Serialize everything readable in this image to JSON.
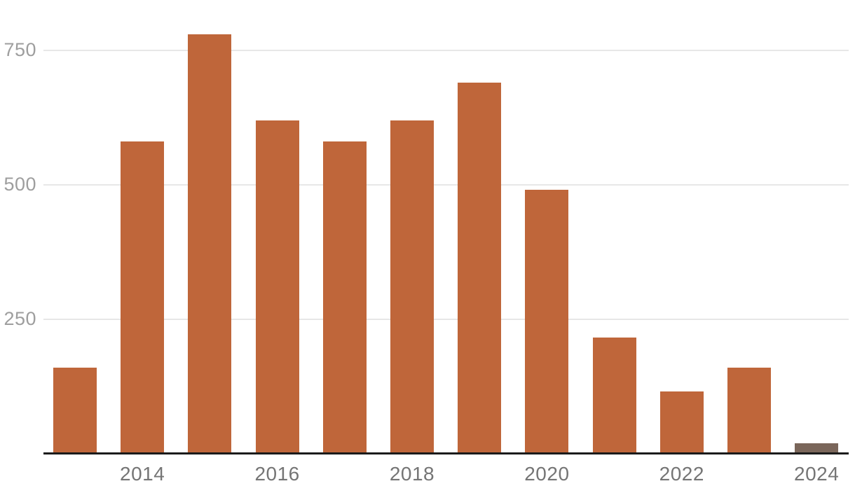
{
  "chart_data": {
    "type": "bar",
    "title": "",
    "xlabel": "",
    "ylabel": "",
    "categories": [
      "2013",
      "2014",
      "2015",
      "2016",
      "2017",
      "2018",
      "2019",
      "2020",
      "2021",
      "2022",
      "2023",
      "2024"
    ],
    "values": [
      160,
      580,
      780,
      620,
      580,
      620,
      690,
      490,
      215,
      115,
      160,
      18
    ],
    "bar_colors": [
      "#bf663a",
      "#bf663a",
      "#bf663a",
      "#bf663a",
      "#bf663a",
      "#bf663a",
      "#bf663a",
      "#bf663a",
      "#bf663a",
      "#bf663a",
      "#bf663a",
      "#7a665a"
    ],
    "ylim": [
      0,
      845
    ],
    "yticks": [
      250,
      500,
      750
    ],
    "x_tick_labels": [
      "2014",
      "2016",
      "2018",
      "2020",
      "2022",
      "2024"
    ],
    "grid": true,
    "legend": "none",
    "colors": {
      "bar_default": "#bf663a",
      "bar_final": "#7a665a",
      "gridline": "#e7e7e7",
      "axis_line": "#1b1b1b",
      "x_label": "#757575",
      "y_label": "#9e9e9e",
      "background": "#ffffff"
    }
  }
}
